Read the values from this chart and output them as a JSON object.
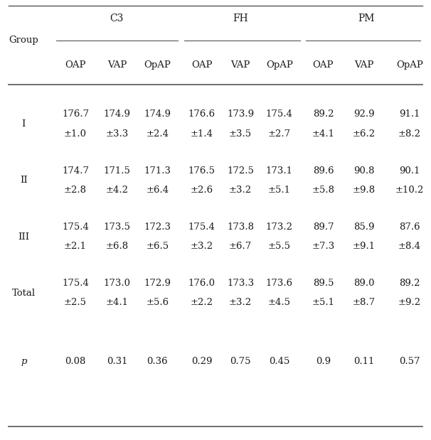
{
  "col_groups": [
    "C3",
    "FH",
    "PM"
  ],
  "subheaders": [
    "OAP",
    "VAP",
    "OpAP",
    "OAP",
    "VAP",
    "OpAP",
    "OAP",
    "VAP",
    "OpAP"
  ],
  "row_labels": [
    "I",
    "II",
    "III",
    "Total",
    "p"
  ],
  "cell_data": [
    [
      "176.7\n±1.0",
      "174.9\n±3.3",
      "174.9\n±2.4",
      "176.6\n±1.4",
      "173.9\n±3.5",
      "175.4\n±2.7",
      "89.2\n±4.1",
      "92.9\n±6.2",
      "91.1\n±8.2"
    ],
    [
      "174.7\n±2.8",
      "171.5\n±4.2",
      "171.3\n±6.4",
      "176.5\n±2.6",
      "172.5\n±3.2",
      "173.1\n±5.1",
      "89.6\n±5.8",
      "90.8\n±9.8",
      "90.1\n±10.2"
    ],
    [
      "175.4\n±2.1",
      "173.5\n±6.8",
      "172.3\n±6.5",
      "175.4\n±3.2",
      "173.8\n±6.7",
      "173.2\n±5.5",
      "89.7\n±7.3",
      "85.9\n±9.1",
      "87.6\n±8.4"
    ],
    [
      "175.4\n±2.5",
      "173.0\n±4.1",
      "172.9\n±5.6",
      "176.0\n±2.2",
      "173.3\n±3.2",
      "173.6\n±4.5",
      "89.5\n±5.1",
      "89.0\n±8.7",
      "89.2\n±9.2"
    ],
    [
      "0.08",
      "0.31",
      "0.36",
      "0.29",
      "0.75",
      "0.45",
      "0.9",
      "0.11",
      "0.57"
    ]
  ],
  "group_label": "Group",
  "background_color": "#ffffff",
  "text_color": "#1a1a1a",
  "line_color": "#555555",
  "font_size": 9.5,
  "fig_width": 6.06,
  "fig_height": 6.19,
  "dpi": 100
}
